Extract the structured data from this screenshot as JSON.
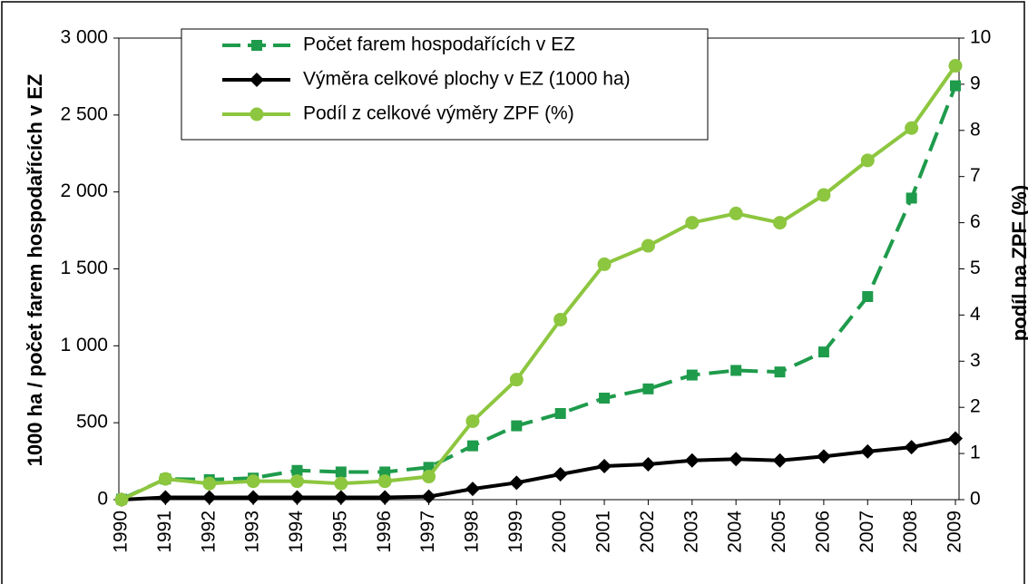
{
  "chart_data": {
    "type": "line",
    "ylabel": "1000 ha / počet farem hospodařících v EZ",
    "y2label": "podíl na ZPF (%)",
    "categories": [
      "1990",
      "1991",
      "1992",
      "1993",
      "1994",
      "1995",
      "1996",
      "1997",
      "1998",
      "1999",
      "2000",
      "2001",
      "2002",
      "2003",
      "2004",
      "2005",
      "2006",
      "2007",
      "2008",
      "2009"
    ],
    "series": [
      {
        "name": "Počet farem hospodařících v EZ",
        "color": "#1e9b4b",
        "marker": "square",
        "dashed": true,
        "values": [
          3,
          135,
          130,
          140,
          190,
          180,
          180,
          210,
          350,
          480,
          560,
          660,
          720,
          810,
          840,
          830,
          960,
          1320,
          1960,
          2690
        ]
      },
      {
        "name": "Výměra celkové plochy v EZ (1000 ha)",
        "color": "#000000",
        "marker": "diamond",
        "dashed": false,
        "values": [
          0,
          15,
          15,
          15,
          15,
          15,
          15,
          20,
          70,
          110,
          165,
          218,
          230,
          255,
          264,
          255,
          281,
          313,
          341,
          398
        ]
      },
      {
        "name": "Podíl z celkové výměry ZPF (%)",
        "color": "#8dc63f",
        "marker": "circle",
        "dashed": false,
        "axis": "y2",
        "values": [
          0,
          0.45,
          0.35,
          0.4,
          0.4,
          0.35,
          0.4,
          0.5,
          1.7,
          2.6,
          3.9,
          5.1,
          5.5,
          6.0,
          6.2,
          6.0,
          6.6,
          7.35,
          8.05,
          9.4
        ]
      }
    ],
    "ylim": [
      0,
      3000
    ],
    "yticks": [
      0,
      500,
      {
        "value": 1000,
        "label": "1 000"
      },
      {
        "value": 1500,
        "label": "1 500"
      },
      {
        "value": 2000,
        "label": "2 000"
      },
      {
        "value": 2500,
        "label": "2 500"
      },
      {
        "value": 3000,
        "label": "3 000"
      }
    ],
    "y2lim": [
      0,
      10
    ],
    "y2ticks": [
      0,
      1,
      2,
      3,
      4,
      5,
      6,
      7,
      8,
      9,
      10
    ]
  }
}
